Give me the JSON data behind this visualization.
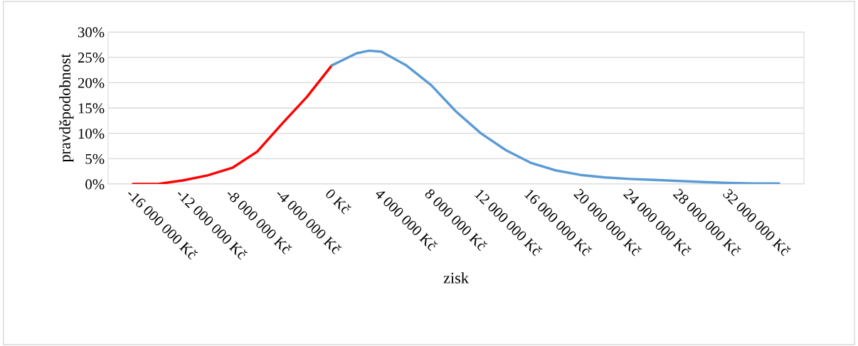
{
  "chart_data": {
    "type": "line",
    "xlabel": "zisk",
    "ylabel": "pravděpodobnost",
    "xlim": [
      -18000000,
      38000000
    ],
    "xticks": [
      {
        "value": -16000000,
        "label": "-16 000 000 Kč"
      },
      {
        "value": -12000000,
        "label": "-12 000 000 Kč"
      },
      {
        "value": -8000000,
        "label": "-8 000 000 Kč"
      },
      {
        "value": -4000000,
        "label": "-4 000 000 Kč"
      },
      {
        "value": 0,
        "label": "0 Kč"
      },
      {
        "value": 4000000,
        "label": "4 000 000 Kč"
      },
      {
        "value": 8000000,
        "label": "8 000 000 Kč"
      },
      {
        "value": 12000000,
        "label": "12 000 000 Kč"
      },
      {
        "value": 16000000,
        "label": "16 000 000 Kč"
      },
      {
        "value": 20000000,
        "label": "20 000 000 Kč"
      },
      {
        "value": 24000000,
        "label": "24 000 000 Kč"
      },
      {
        "value": 28000000,
        "label": "28 000 000 Kč"
      },
      {
        "value": 32000000,
        "label": "32 000 000 Kč"
      }
    ],
    "ylim": [
      0,
      30
    ],
    "yticks": [
      {
        "value": 0,
        "label": "0%"
      },
      {
        "value": 5,
        "label": "5%"
      },
      {
        "value": 10,
        "label": "10%"
      },
      {
        "value": 15,
        "label": "15%"
      },
      {
        "value": 20,
        "label": "20%"
      },
      {
        "value": 25,
        "label": "25%"
      },
      {
        "value": 30,
        "label": "30%"
      }
    ],
    "grid": "y",
    "marker": "none",
    "line_style": "solid",
    "series": [
      {
        "color": "#ff0000",
        "x": [
          -16000000,
          -14000000,
          -12000000,
          -10000000,
          -8000000,
          -6000000,
          -4000000,
          -2000000,
          0
        ],
        "values": [
          0,
          0,
          0.7,
          1.7,
          3.2,
          6.4,
          11.9,
          17.2,
          23.4
        ]
      },
      {
        "color": "#5b9bd5",
        "x": [
          0,
          2000000,
          3000000,
          4000000,
          6000000,
          8000000,
          10000000,
          12000000,
          14000000,
          16000000,
          18000000,
          20000000,
          22000000,
          24000000,
          26000000,
          28000000,
          30000000,
          32000000,
          34000000,
          36000000
        ],
        "values": [
          23.4,
          25.8,
          26.3,
          26.1,
          23.4,
          19.5,
          14.3,
          10,
          6.7,
          4.2,
          2.7,
          1.8,
          1.3,
          1,
          0.8,
          0.6,
          0.4,
          0.2,
          0.1,
          0.1
        ]
      }
    ]
  }
}
